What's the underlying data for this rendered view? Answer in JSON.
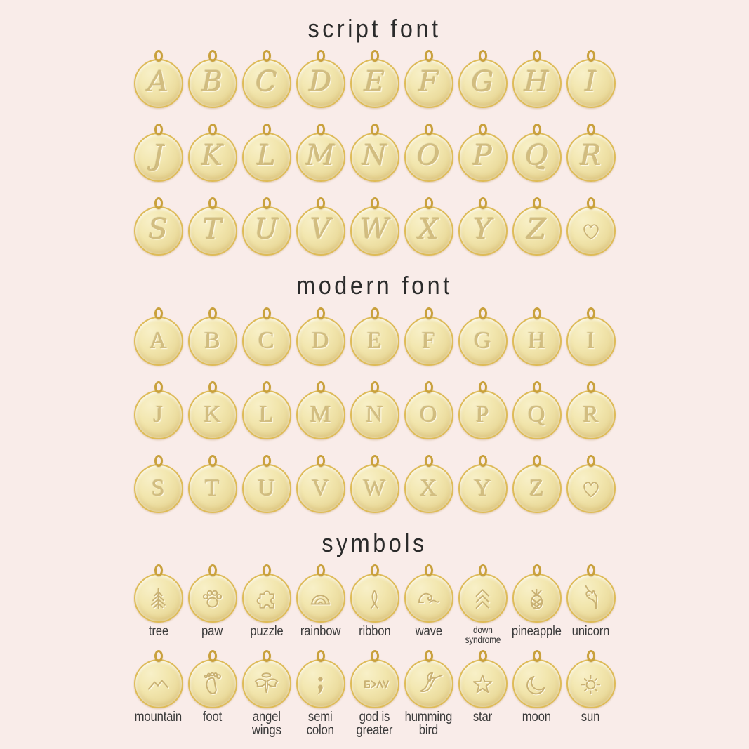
{
  "palette": {
    "background": "#f9ece9",
    "gold_face": "#efe2a9",
    "gold_rim": "#debb58",
    "bail_gold": "#c9a13d",
    "engraving": "#c9b173",
    "heading_text": "#2b2b2b",
    "label_text": "#3a3a3a"
  },
  "sections": [
    {
      "id": "script",
      "title": "script font",
      "type": "letters",
      "letter_style": "script",
      "rows": [
        [
          "A",
          "B",
          "C",
          "D",
          "E",
          "F",
          "G",
          "H",
          "I"
        ],
        [
          "J",
          "K",
          "L",
          "M",
          "N",
          "O",
          "P",
          "Q",
          "R"
        ],
        [
          "S",
          "T",
          "U",
          "V",
          "W",
          "X",
          "Y",
          "Z",
          "♥"
        ]
      ]
    },
    {
      "id": "modern",
      "title": "modern font",
      "type": "letters",
      "letter_style": "modern",
      "rows": [
        [
          "A",
          "B",
          "C",
          "D",
          "E",
          "F",
          "G",
          "H",
          "I"
        ],
        [
          "J",
          "K",
          "L",
          "M",
          "N",
          "O",
          "P",
          "Q",
          "R"
        ],
        [
          "S",
          "T",
          "U",
          "V",
          "W",
          "X",
          "Y",
          "Z",
          "♥"
        ]
      ]
    },
    {
      "id": "symbols",
      "title": "symbols",
      "type": "symbols",
      "rows": [
        [
          {
            "icon": "tree-icon",
            "label": "tree"
          },
          {
            "icon": "paw-icon",
            "label": "paw"
          },
          {
            "icon": "puzzle-icon",
            "label": "puzzle"
          },
          {
            "icon": "rainbow-icon",
            "label": "rainbow"
          },
          {
            "icon": "ribbon-icon",
            "label": "ribbon"
          },
          {
            "icon": "wave-icon",
            "label": "wave"
          },
          {
            "icon": "down-syndrome-icon",
            "label": "down\nsyndrome",
            "label_size": "small"
          },
          {
            "icon": "pineapple-icon",
            "label": "pineapple"
          },
          {
            "icon": "unicorn-icon",
            "label": "unicorn"
          }
        ],
        [
          {
            "icon": "mountain-icon",
            "label": "mountain"
          },
          {
            "icon": "foot-icon",
            "label": "foot"
          },
          {
            "icon": "angel-wings-icon",
            "label": "angel\nwings"
          },
          {
            "icon": "semicolon-icon",
            "label": "semi\ncolon"
          },
          {
            "icon": "god-is-greater-icon",
            "label": "god is\ngreater"
          },
          {
            "icon": "hummingbird-icon",
            "label": "humming\nbird"
          },
          {
            "icon": "star-icon",
            "label": "star"
          },
          {
            "icon": "moon-icon",
            "label": "moon"
          },
          {
            "icon": "sun-icon",
            "label": "sun"
          }
        ]
      ]
    }
  ]
}
